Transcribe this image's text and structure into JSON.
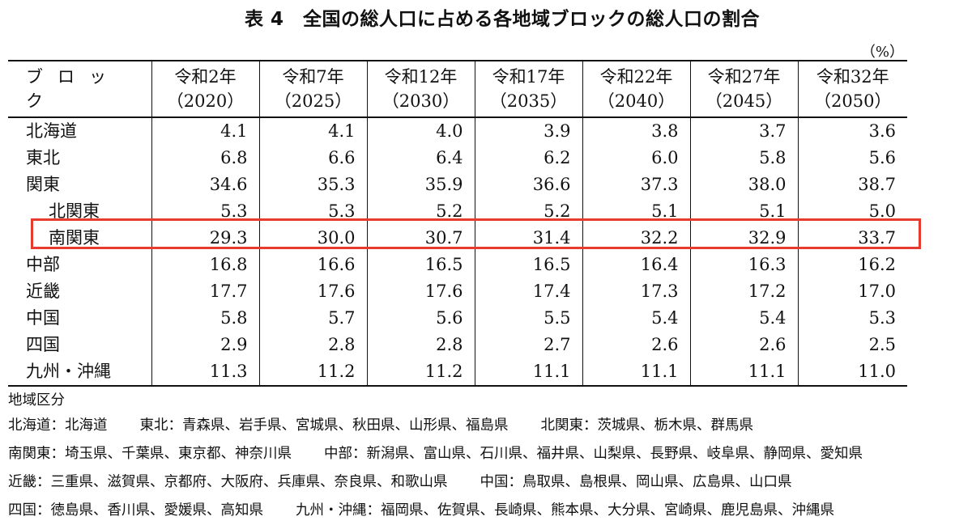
{
  "title": "表 4　全国の総人口に占める各地域ブロックの総人口の割合",
  "unit": "（%）",
  "table": {
    "block_header": "ブロック",
    "columns": [
      {
        "era": "令和2年",
        "year": "（2020）"
      },
      {
        "era": "令和7年",
        "year": "（2025）"
      },
      {
        "era": "令和12年",
        "year": "（2030）"
      },
      {
        "era": "令和17年",
        "year": "（2035）"
      },
      {
        "era": "令和22年",
        "year": "（2040）"
      },
      {
        "era": "令和27年",
        "year": "（2045）"
      },
      {
        "era": "令和32年",
        "year": "（2050）"
      }
    ],
    "rows": [
      {
        "name": "北海道",
        "values": [
          "4.1",
          "4.1",
          "4.0",
          "3.9",
          "3.8",
          "3.7",
          "3.6"
        ]
      },
      {
        "name": "東北",
        "values": [
          "6.8",
          "6.6",
          "6.4",
          "6.2",
          "6.0",
          "5.8",
          "5.6"
        ]
      },
      {
        "name": "関東",
        "values": [
          "34.6",
          "35.3",
          "35.9",
          "36.6",
          "37.3",
          "38.0",
          "38.7"
        ]
      },
      {
        "name": "北関東",
        "values": [
          "5.3",
          "5.3",
          "5.2",
          "5.2",
          "5.1",
          "5.1",
          "5.0"
        ]
      },
      {
        "name": "南関東",
        "values": [
          "29.3",
          "30.0",
          "30.7",
          "31.4",
          "32.2",
          "32.9",
          "33.7"
        ]
      },
      {
        "name": "中部",
        "values": [
          "16.8",
          "16.6",
          "16.5",
          "16.5",
          "16.4",
          "16.3",
          "16.2"
        ]
      },
      {
        "name": "近畿",
        "values": [
          "17.7",
          "17.6",
          "17.6",
          "17.4",
          "17.3",
          "17.2",
          "17.0"
        ]
      },
      {
        "name": "中国",
        "values": [
          "5.8",
          "5.7",
          "5.6",
          "5.5",
          "5.4",
          "5.4",
          "5.3"
        ]
      },
      {
        "name": "四国",
        "values": [
          "2.9",
          "2.8",
          "2.8",
          "2.7",
          "2.6",
          "2.6",
          "2.5"
        ]
      },
      {
        "name": "九州・沖縄",
        "values": [
          "11.3",
          "11.2",
          "11.2",
          "11.1",
          "11.1",
          "11.1",
          "11.0"
        ]
      }
    ]
  },
  "highlight_color": "#e63b2e",
  "notes": {
    "heading": "地域区分",
    "hokkaido": "北海道：北海道",
    "tohoku": "東北：青森県、岩手県、宮城県、秋田県、山形県、福島県",
    "kitakanto": "北関東：茨城県、栃木県、群馬県",
    "minamikanto": "南関東：埼玉県、千葉県、東京都、神奈川県",
    "chubu": "中部：新潟県、富山県、石川県、福井県、山梨県、長野県、岐阜県、静岡県、愛知県",
    "kinki": "近畿：三重県、滋賀県、京都府、大阪府、兵庫県、奈良県、和歌山県",
    "chugoku": "中国：鳥取県、島根県、岡山県、広島県、山口県",
    "shikoku": "四国：徳島県、香川県、愛媛県、高知県",
    "kyushu": "九州・沖縄：福岡県、佐賀県、長崎県、熊本県、大分県、宮崎県、鹿児島県、沖縄県"
  }
}
